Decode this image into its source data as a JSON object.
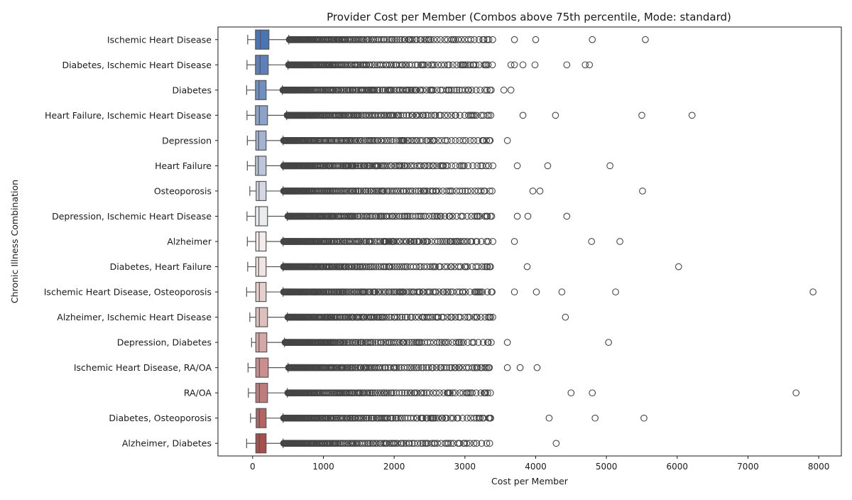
{
  "chart_data": {
    "type": "boxplot-horizontal",
    "title": "Provider Cost per Member (Combos above 75th percentile, Mode: standard)",
    "xlabel": "Cost per Member",
    "ylabel": "Chronic Illness Combination",
    "xlim": [
      -490,
      8320
    ],
    "xticks": [
      0,
      1000,
      2000,
      3000,
      4000,
      5000,
      6000,
      7000,
      8000
    ],
    "grid": false,
    "palette": "blue-to-red diverging",
    "categories": [
      "Ischemic Heart Disease",
      "Diabetes, Ischemic Heart Disease",
      "Diabetes",
      "Heart Failure, Ischemic Heart Disease",
      "Depression",
      "Heart Failure",
      "Osteoporosis",
      "Depression, Ischemic Heart Disease",
      "Alzheimer",
      "Diabetes, Heart Failure",
      "Ischemic Heart Disease, Osteoporosis",
      "Alzheimer, Ischemic Heart Disease",
      "Depression, Diabetes",
      "Ischemic Heart Disease, RA/OA",
      "RA/OA",
      "Diabetes, Osteoporosis",
      "Alzheimer, Diabetes"
    ],
    "colors": [
      "#4a74b4",
      "#5d80ba",
      "#7190c2",
      "#8ca2c9",
      "#a4b3d2",
      "#bcc6da",
      "#d3d8e3",
      "#ebecf0",
      "#f5eded",
      "#f1e4e4",
      "#e8d0cf",
      "#dfbfbe",
      "#d4a8a7",
      "#c98e8d",
      "#bf7c7b",
      "#b46463",
      "#a84f4e"
    ],
    "series": [
      {
        "whislo": -70,
        "q1": 40,
        "median": 110,
        "q3": 230,
        "whishi": 510,
        "fliers": [
          3700,
          4000,
          4800,
          5550
        ]
      },
      {
        "whislo": -80,
        "q1": 40,
        "median": 105,
        "q3": 220,
        "whishi": 500,
        "fliers": [
          3650,
          3700,
          3820,
          3990,
          4440,
          4700,
          4760
        ]
      },
      {
        "whislo": -85,
        "q1": 40,
        "median": 90,
        "q3": 190,
        "whishi": 420,
        "fliers": [
          3550,
          3650
        ]
      },
      {
        "whislo": -80,
        "q1": 40,
        "median": 95,
        "q3": 210,
        "whishi": 480,
        "fliers": [
          3820,
          4280,
          5500,
          6210
        ]
      },
      {
        "whislo": -75,
        "q1": 45,
        "median": 85,
        "q3": 190,
        "whishi": 430,
        "fliers": [
          3600
        ]
      },
      {
        "whislo": -75,
        "q1": 40,
        "median": 80,
        "q3": 190,
        "whishi": 430,
        "fliers": [
          3740,
          4170,
          5050
        ]
      },
      {
        "whislo": -40,
        "q1": 50,
        "median": 90,
        "q3": 190,
        "whishi": 430,
        "fliers": [
          3960,
          4060,
          5510
        ]
      },
      {
        "whislo": -80,
        "q1": 40,
        "median": 90,
        "q3": 210,
        "whishi": 490,
        "fliers": [
          3740,
          3890,
          4440
        ]
      },
      {
        "whislo": -75,
        "q1": 45,
        "median": 90,
        "q3": 190,
        "whishi": 430,
        "fliers": [
          3700,
          4790,
          5190
        ]
      },
      {
        "whislo": -70,
        "q1": 45,
        "median": 85,
        "q3": 190,
        "whishi": 430,
        "fliers": [
          3880,
          6020
        ]
      },
      {
        "whislo": -85,
        "q1": 45,
        "median": 95,
        "q3": 190,
        "whishi": 430,
        "fliers": [
          3700,
          4010,
          4370,
          5130,
          7920
        ]
      },
      {
        "whislo": -40,
        "q1": 45,
        "median": 95,
        "q3": 210,
        "whishi": 490,
        "fliers": [
          4420
        ]
      },
      {
        "whislo": -15,
        "q1": 45,
        "median": 90,
        "q3": 200,
        "whishi": 450,
        "fliers": [
          3600,
          5030
        ]
      },
      {
        "whislo": -65,
        "q1": 45,
        "median": 95,
        "q3": 220,
        "whishi": 500,
        "fliers": [
          3600,
          3780,
          4020
        ]
      },
      {
        "whislo": -60,
        "q1": 45,
        "median": 95,
        "q3": 210,
        "whishi": 490,
        "fliers": [
          4500,
          4800,
          7680
        ]
      },
      {
        "whislo": -30,
        "q1": 50,
        "median": 95,
        "q3": 190,
        "whishi": 430,
        "fliers": [
          4190,
          4840,
          5530
        ]
      },
      {
        "whislo": -85,
        "q1": 45,
        "median": 95,
        "q3": 190,
        "whishi": 430,
        "fliers": [
          4290
        ]
      }
    ]
  }
}
